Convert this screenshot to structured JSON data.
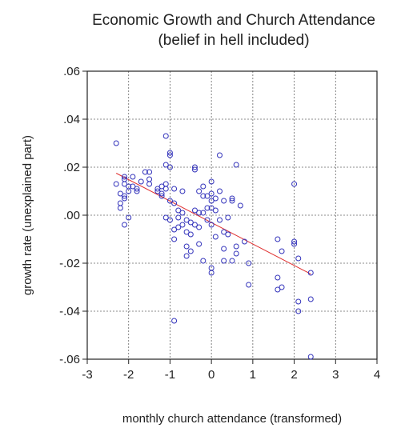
{
  "chart_data": {
    "type": "scatter",
    "title": "Economic Growth and Church Attendance",
    "subtitle": "(belief in hell included)",
    "xlabel": "monthly church attendance (transformed)",
    "ylabel": "growth rate (unexplained part)",
    "xlim": [
      -3,
      4
    ],
    "ylim": [
      -0.06,
      0.06
    ],
    "xticks": [
      -3,
      -2,
      -1,
      0,
      1,
      2,
      3,
      4
    ],
    "xtick_labels": [
      "-3",
      "-2",
      "-1",
      "0",
      "1",
      "2",
      "3",
      "4"
    ],
    "yticks": [
      -0.06,
      -0.04,
      -0.02,
      0.0,
      0.02,
      0.04,
      0.06
    ],
    "ytick_labels": [
      "-.06",
      "-.04",
      "-.02",
      ".00",
      ".02",
      ".04",
      ".06"
    ],
    "grid": true,
    "point_color": "#3333bb",
    "fit_color": "#e03030",
    "fit_line": {
      "x": [
        -2.3,
        2.4
      ],
      "y": [
        0.0175,
        -0.0245
      ]
    },
    "points": [
      {
        "x": -2.3,
        "y": 0.03
      },
      {
        "x": -2.3,
        "y": 0.013
      },
      {
        "x": -2.2,
        "y": 0.009
      },
      {
        "x": -2.2,
        "y": 0.005
      },
      {
        "x": -2.2,
        "y": 0.003
      },
      {
        "x": -2.1,
        "y": 0.016
      },
      {
        "x": -2.1,
        "y": 0.015
      },
      {
        "x": -2.1,
        "y": 0.013
      },
      {
        "x": -2.1,
        "y": 0.008
      },
      {
        "x": -2.1,
        "y": 0.007
      },
      {
        "x": -2.1,
        "y": -0.004
      },
      {
        "x": -2.0,
        "y": 0.012
      },
      {
        "x": -2.0,
        "y": 0.01
      },
      {
        "x": -2.0,
        "y": -0.001
      },
      {
        "x": -1.9,
        "y": 0.016
      },
      {
        "x": -1.9,
        "y": 0.012
      },
      {
        "x": -1.8,
        "y": 0.011
      },
      {
        "x": -1.8,
        "y": 0.01
      },
      {
        "x": -1.7,
        "y": 0.014
      },
      {
        "x": -1.6,
        "y": 0.018
      },
      {
        "x": -1.5,
        "y": 0.018
      },
      {
        "x": -1.5,
        "y": 0.015
      },
      {
        "x": -1.5,
        "y": 0.013
      },
      {
        "x": -1.3,
        "y": 0.011
      },
      {
        "x": -1.3,
        "y": 0.01
      },
      {
        "x": -1.2,
        "y": 0.012
      },
      {
        "x": -1.2,
        "y": 0.009
      },
      {
        "x": -1.2,
        "y": 0.008
      },
      {
        "x": -1.1,
        "y": 0.033
      },
      {
        "x": -1.1,
        "y": 0.021
      },
      {
        "x": -1.1,
        "y": 0.013
      },
      {
        "x": -1.1,
        "y": 0.011
      },
      {
        "x": -1.1,
        "y": -0.001
      },
      {
        "x": -1.0,
        "y": 0.026
      },
      {
        "x": -1.0,
        "y": 0.025
      },
      {
        "x": -1.0,
        "y": 0.02
      },
      {
        "x": -1.0,
        "y": 0.006
      },
      {
        "x": -1.0,
        "y": -0.002
      },
      {
        "x": -0.9,
        "y": 0.011
      },
      {
        "x": -0.9,
        "y": 0.005
      },
      {
        "x": -0.9,
        "y": -0.006
      },
      {
        "x": -0.9,
        "y": -0.01
      },
      {
        "x": -0.9,
        "y": -0.044
      },
      {
        "x": -0.8,
        "y": 0.002
      },
      {
        "x": -0.8,
        "y": -0.001
      },
      {
        "x": -0.8,
        "y": -0.005
      },
      {
        "x": -0.7,
        "y": 0.01
      },
      {
        "x": -0.7,
        "y": 0.001
      },
      {
        "x": -0.7,
        "y": -0.004
      },
      {
        "x": -0.6,
        "y": -0.002
      },
      {
        "x": -0.6,
        "y": -0.007
      },
      {
        "x": -0.6,
        "y": -0.013
      },
      {
        "x": -0.6,
        "y": -0.017
      },
      {
        "x": -0.5,
        "y": -0.003
      },
      {
        "x": -0.5,
        "y": -0.008
      },
      {
        "x": -0.5,
        "y": -0.015
      },
      {
        "x": -0.4,
        "y": 0.02
      },
      {
        "x": -0.4,
        "y": 0.019
      },
      {
        "x": -0.4,
        "y": 0.002
      },
      {
        "x": -0.4,
        "y": -0.004
      },
      {
        "x": -0.3,
        "y": 0.01
      },
      {
        "x": -0.3,
        "y": 0.001
      },
      {
        "x": -0.3,
        "y": -0.005
      },
      {
        "x": -0.3,
        "y": -0.012
      },
      {
        "x": -0.2,
        "y": 0.012
      },
      {
        "x": -0.2,
        "y": 0.008
      },
      {
        "x": -0.2,
        "y": 0.001
      },
      {
        "x": -0.2,
        "y": -0.019
      },
      {
        "x": -0.1,
        "y": 0.008
      },
      {
        "x": -0.1,
        "y": 0.003
      },
      {
        "x": -0.1,
        "y": -0.002
      },
      {
        "x": 0.0,
        "y": 0.014
      },
      {
        "x": 0.0,
        "y": 0.009
      },
      {
        "x": 0.0,
        "y": 0.006
      },
      {
        "x": 0.0,
        "y": 0.003
      },
      {
        "x": 0.0,
        "y": -0.004
      },
      {
        "x": 0.0,
        "y": -0.022
      },
      {
        "x": 0.0,
        "y": -0.024
      },
      {
        "x": 0.1,
        "y": 0.007
      },
      {
        "x": 0.1,
        "y": 0.002
      },
      {
        "x": 0.1,
        "y": -0.009
      },
      {
        "x": 0.2,
        "y": 0.025
      },
      {
        "x": 0.2,
        "y": 0.01
      },
      {
        "x": 0.2,
        "y": -0.002
      },
      {
        "x": 0.3,
        "y": 0.006
      },
      {
        "x": 0.3,
        "y": -0.007
      },
      {
        "x": 0.3,
        "y": -0.014
      },
      {
        "x": 0.3,
        "y": -0.019
      },
      {
        "x": 0.4,
        "y": -0.001
      },
      {
        "x": 0.4,
        "y": -0.008
      },
      {
        "x": 0.5,
        "y": 0.007
      },
      {
        "x": 0.5,
        "y": 0.006
      },
      {
        "x": 0.5,
        "y": -0.019
      },
      {
        "x": 0.6,
        "y": 0.021
      },
      {
        "x": 0.6,
        "y": -0.013
      },
      {
        "x": 0.6,
        "y": -0.016
      },
      {
        "x": 0.7,
        "y": 0.004
      },
      {
        "x": 0.8,
        "y": -0.011
      },
      {
        "x": 0.9,
        "y": -0.02
      },
      {
        "x": 0.9,
        "y": -0.029
      },
      {
        "x": 1.6,
        "y": -0.01
      },
      {
        "x": 1.6,
        "y": -0.026
      },
      {
        "x": 1.6,
        "y": -0.031
      },
      {
        "x": 1.7,
        "y": -0.015
      },
      {
        "x": 1.7,
        "y": -0.03
      },
      {
        "x": 2.0,
        "y": 0.013
      },
      {
        "x": 2.0,
        "y": -0.011
      },
      {
        "x": 2.0,
        "y": -0.012
      },
      {
        "x": 2.1,
        "y": -0.018
      },
      {
        "x": 2.1,
        "y": -0.036
      },
      {
        "x": 2.1,
        "y": -0.04
      },
      {
        "x": 2.4,
        "y": -0.024
      },
      {
        "x": 2.4,
        "y": -0.035
      },
      {
        "x": 2.4,
        "y": -0.059
      }
    ]
  }
}
